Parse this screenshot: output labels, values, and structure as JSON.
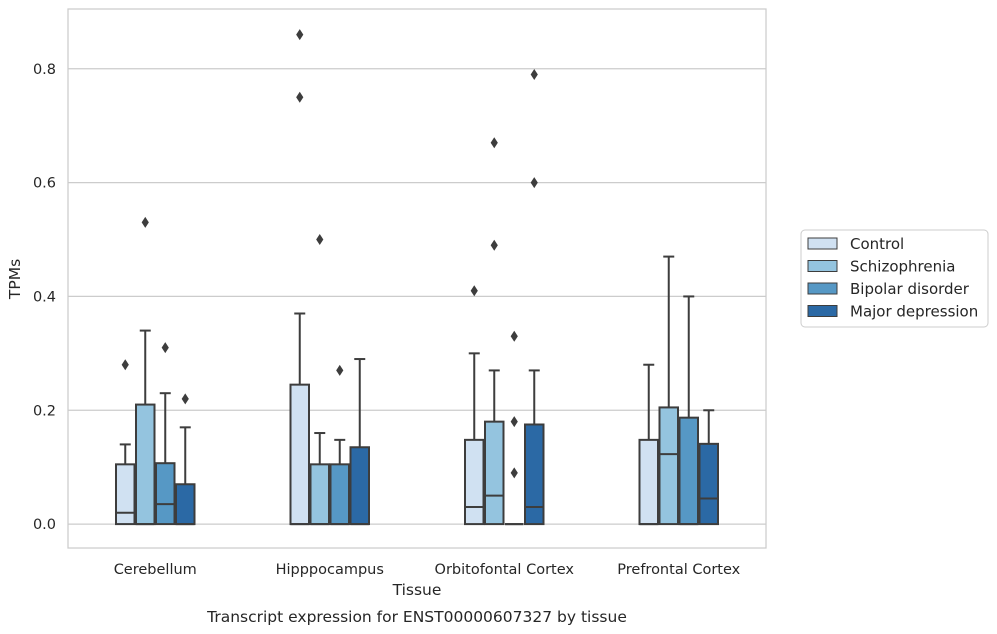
{
  "chart_data": {
    "type": "boxplot",
    "title": "",
    "caption": "Transcript expression for ENST00000607327 by tissue",
    "xlabel": "Tissue",
    "ylabel": "TPMs",
    "ylim": [
      -0.042,
      0.905
    ],
    "yticks": [
      0.0,
      0.2,
      0.4,
      0.6,
      0.8
    ],
    "ytick_labels": [
      "0.0",
      "0.2",
      "0.4",
      "0.6",
      "0.8"
    ],
    "grid": "horizontal",
    "legend_position": "right",
    "categories": [
      "Cerebellum",
      "Hipppocampus",
      "Orbitofontal Cortex",
      "Prefrontal Cortex"
    ],
    "series": [
      {
        "name": "Control",
        "color": "#d0e1f2",
        "boxes": [
          {
            "q1": 0.0,
            "median": 0.02,
            "q3": 0.105,
            "whisker_low": 0.0,
            "whisker_high": 0.14,
            "outliers": [
              0.28
            ]
          },
          {
            "q1": 0.0,
            "median": 0.0,
            "q3": 0.245,
            "whisker_low": 0.0,
            "whisker_high": 0.37,
            "outliers": [
              0.86,
              0.75
            ]
          },
          {
            "q1": 0.0,
            "median": 0.03,
            "q3": 0.148,
            "whisker_low": 0.0,
            "whisker_high": 0.3,
            "outliers": [
              0.41
            ]
          },
          {
            "q1": 0.0,
            "median": 0.0,
            "q3": 0.148,
            "whisker_low": 0.0,
            "whisker_high": 0.28,
            "outliers": []
          }
        ]
      },
      {
        "name": "Schizophrenia",
        "color": "#94c4df",
        "boxes": [
          {
            "q1": 0.0,
            "median": 0.0,
            "q3": 0.21,
            "whisker_low": 0.0,
            "whisker_high": 0.34,
            "outliers": [
              0.53
            ]
          },
          {
            "q1": 0.0,
            "median": 0.0,
            "q3": 0.105,
            "whisker_low": 0.0,
            "whisker_high": 0.16,
            "outliers": [
              0.5
            ]
          },
          {
            "q1": 0.0,
            "median": 0.05,
            "q3": 0.18,
            "whisker_low": 0.0,
            "whisker_high": 0.27,
            "outliers": [
              0.67,
              0.49
            ]
          },
          {
            "q1": 0.0,
            "median": 0.123,
            "q3": 0.205,
            "whisker_low": 0.0,
            "whisker_high": 0.47,
            "outliers": []
          }
        ]
      },
      {
        "name": "Bipolar disorder",
        "color": "#5698c5",
        "boxes": [
          {
            "q1": 0.0,
            "median": 0.035,
            "q3": 0.107,
            "whisker_low": 0.0,
            "whisker_high": 0.23,
            "outliers": [
              0.31
            ]
          },
          {
            "q1": 0.0,
            "median": 0.0,
            "q3": 0.105,
            "whisker_low": 0.0,
            "whisker_high": 0.148,
            "outliers": [
              0.27
            ]
          },
          {
            "q1": 0.0,
            "median": 0.0,
            "q3": 0.0,
            "whisker_low": 0.0,
            "whisker_high": 0.0,
            "outliers": [
              0.33,
              0.18,
              0.09
            ]
          },
          {
            "q1": 0.0,
            "median": 0.0,
            "q3": 0.187,
            "whisker_low": 0.0,
            "whisker_high": 0.4,
            "outliers": []
          }
        ]
      },
      {
        "name": "Major depression",
        "color": "#2b69a5",
        "boxes": [
          {
            "q1": 0.0,
            "median": 0.0,
            "q3": 0.07,
            "whisker_low": 0.0,
            "whisker_high": 0.17,
            "outliers": [
              0.22
            ]
          },
          {
            "q1": 0.0,
            "median": 0.0,
            "q3": 0.135,
            "whisker_low": 0.0,
            "whisker_high": 0.29,
            "outliers": []
          },
          {
            "q1": 0.0,
            "median": 0.03,
            "q3": 0.175,
            "whisker_low": 0.0,
            "whisker_high": 0.27,
            "outliers": [
              0.79,
              0.6
            ]
          },
          {
            "q1": 0.0,
            "median": 0.045,
            "q3": 0.141,
            "whisker_low": 0.0,
            "whisker_high": 0.2,
            "outliers": []
          }
        ]
      }
    ]
  }
}
